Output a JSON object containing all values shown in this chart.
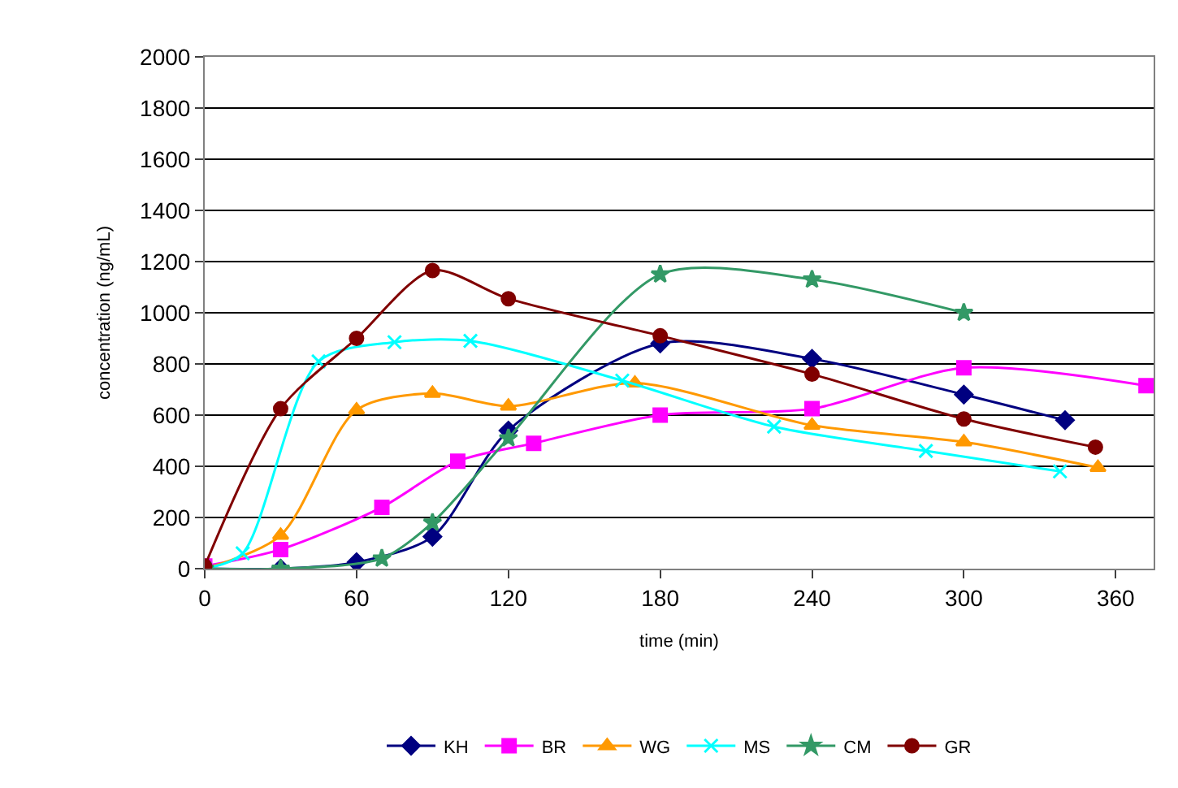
{
  "chart_data": {
    "type": "line",
    "xlabel": "time (min)",
    "ylabel": "concentration (ng/mL)",
    "xlim": [
      0,
      375
    ],
    "xticks": [
      0,
      60,
      120,
      180,
      240,
      300,
      360
    ],
    "ylim": [
      0,
      2000
    ],
    "yticks": [
      0,
      200,
      400,
      600,
      800,
      1000,
      1200,
      1400,
      1600,
      1800,
      2000
    ],
    "grid": "y",
    "legend": "bottom",
    "series": [
      {
        "name": "KH",
        "color": "#000080",
        "marker": "diamond",
        "x": [
          0,
          30,
          60,
          90,
          120,
          180,
          240,
          300,
          340
        ],
        "values": [
          0,
          0,
          25,
          125,
          540,
          880,
          820,
          680,
          580
        ]
      },
      {
        "name": "BR",
        "color": "#ff00ff",
        "marker": "square",
        "x": [
          0,
          30,
          70,
          100,
          130,
          180,
          240,
          300,
          372
        ],
        "values": [
          10,
          75,
          240,
          420,
          490,
          600,
          625,
          785,
          715
        ]
      },
      {
        "name": "WG",
        "color": "#ff9900",
        "marker": "triangle",
        "x": [
          0,
          30,
          60,
          90,
          120,
          170,
          240,
          300,
          353
        ],
        "values": [
          0,
          130,
          620,
          685,
          635,
          725,
          560,
          495,
          395
        ]
      },
      {
        "name": "MS",
        "color": "#00ffff",
        "marker": "cross",
        "x": [
          0,
          15,
          45,
          75,
          105,
          165,
          225,
          285,
          338
        ],
        "values": [
          0,
          60,
          810,
          885,
          890,
          735,
          555,
          460,
          380
        ]
      },
      {
        "name": "CM",
        "color": "#339966",
        "marker": "star",
        "x": [
          0,
          30,
          70,
          90,
          120,
          180,
          240,
          300
        ],
        "values": [
          0,
          0,
          40,
          180,
          510,
          1150,
          1130,
          1000
        ]
      },
      {
        "name": "GR",
        "color": "#800000",
        "marker": "circle",
        "x": [
          0,
          30,
          60,
          90,
          120,
          180,
          240,
          300,
          352
        ],
        "values": [
          10,
          625,
          900,
          1165,
          1055,
          910,
          760,
          585,
          475
        ]
      }
    ]
  }
}
